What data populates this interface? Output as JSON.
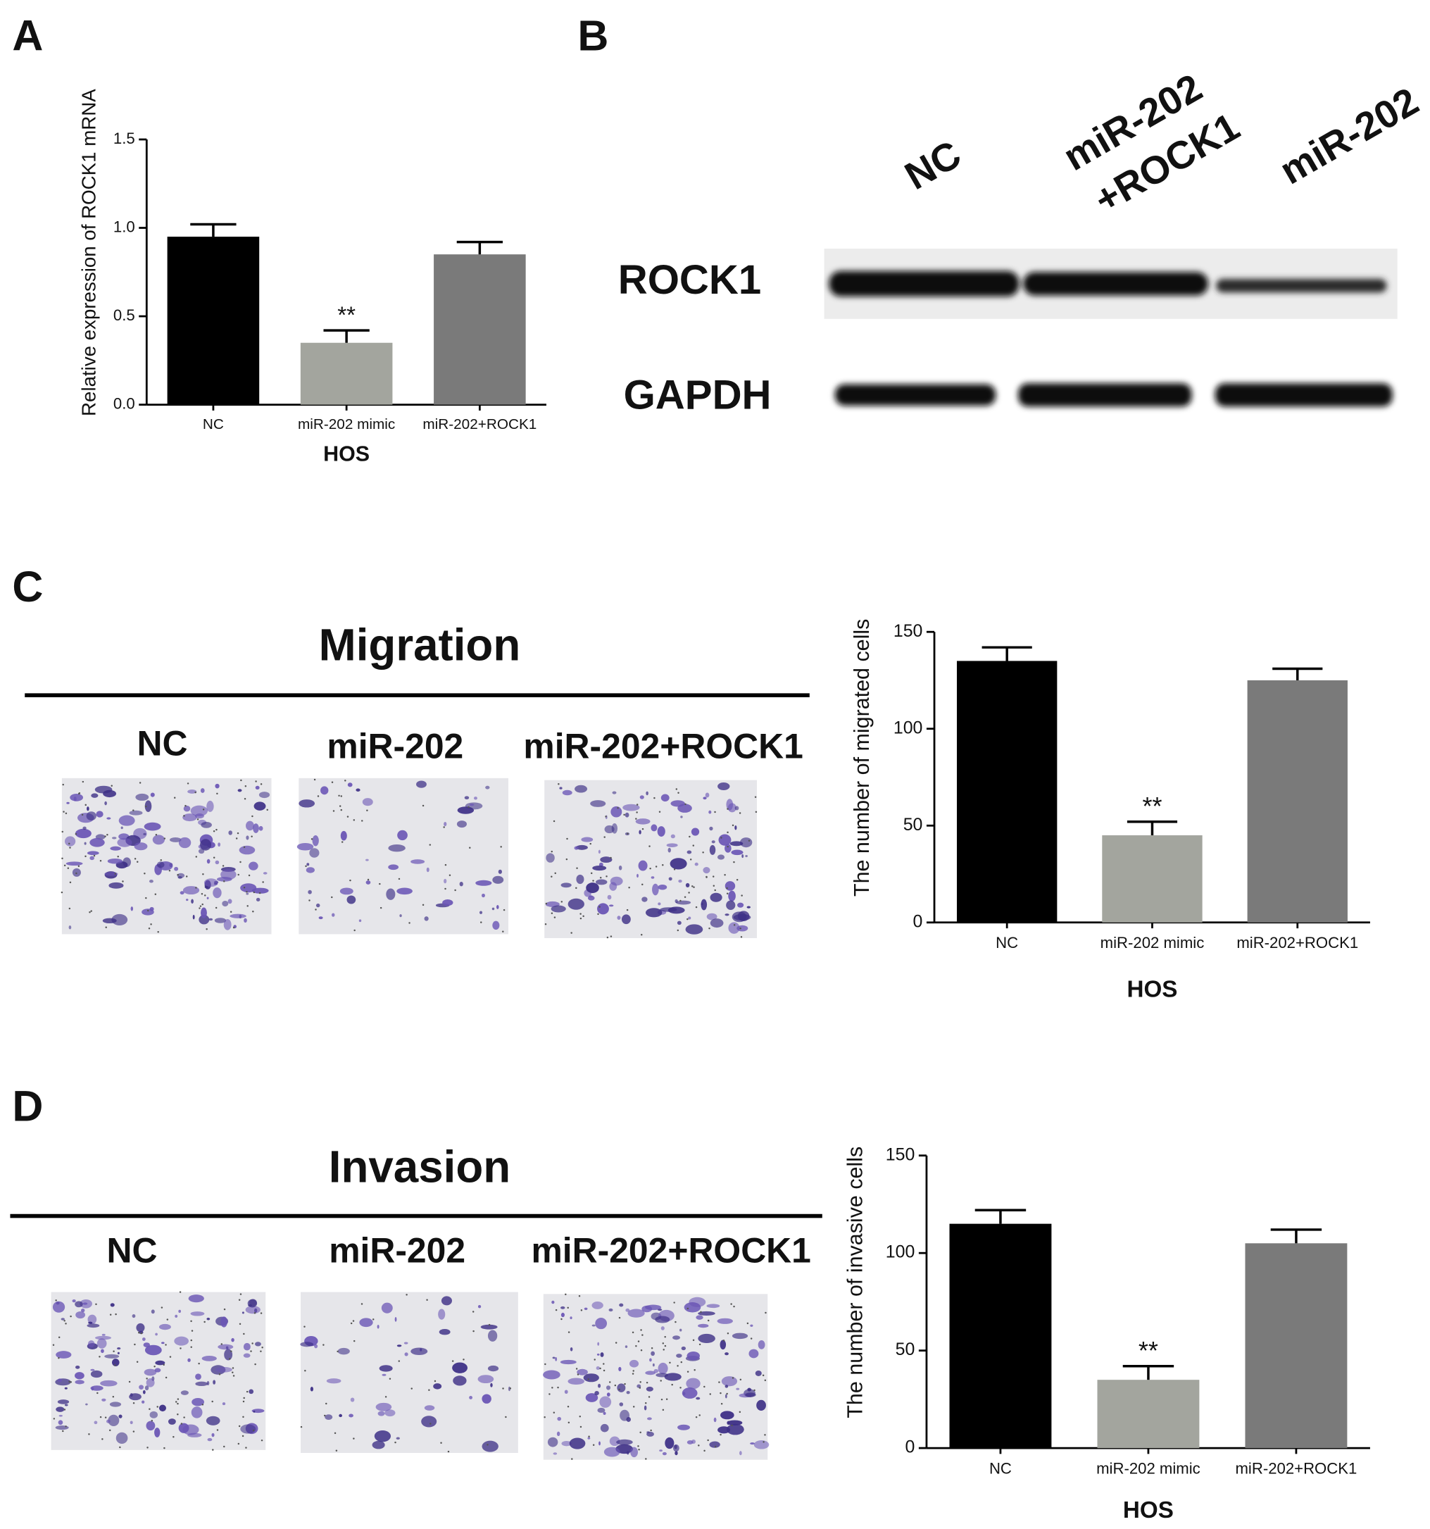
{
  "figure": {
    "panel_labels": [
      "A",
      "B",
      "C",
      "D"
    ],
    "blot": {
      "lanes": [
        [
          "NC"
        ],
        [
          "miR-202",
          "+ROCK1"
        ],
        [
          "miR-202"
        ]
      ],
      "proteins": [
        "ROCK1",
        "GAPDH"
      ]
    },
    "migration": {
      "title": "Migration",
      "groups": [
        "NC",
        "miR-202",
        "miR-202+ROCK1"
      ]
    },
    "invasion": {
      "title": "Invasion",
      "groups": [
        "NC",
        "miR-202",
        "miR-202+ROCK1"
      ]
    }
  },
  "chart_data": [
    {
      "type": "bar",
      "y_label": "Relative expression of ROCK1 mRNA",
      "x_label": "HOS",
      "categories": [
        "NC",
        "miR-202 mimic",
        "miR-202+ROCK1"
      ],
      "values": [
        0.95,
        0.35,
        0.85
      ],
      "errors": [
        0.07,
        0.07,
        0.07
      ],
      "value_annotations": [
        null,
        "**",
        null
      ],
      "colors": [
        "#000000",
        "#a3a59e",
        "#7a7a7a"
      ],
      "ylim": [
        0,
        1.5
      ],
      "yticks": [
        {
          "value": 0,
          "label": "0.0"
        },
        0.5,
        {
          "value": 1,
          "label": "1.0"
        },
        1.5
      ]
    },
    {
      "type": "bar",
      "y_label": "The number of migrated cells",
      "x_label": "HOS",
      "categories": [
        "NC",
        "miR-202 mimic",
        "miR-202+ROCK1"
      ],
      "values": [
        135,
        45,
        125
      ],
      "errors": [
        7,
        7,
        6
      ],
      "value_annotations": [
        null,
        "**",
        null
      ],
      "colors": [
        "#000000",
        "#a3a59e",
        "#7a7a7a"
      ],
      "ylim": [
        0,
        150
      ],
      "yticks": [
        0,
        50,
        100,
        150
      ]
    },
    {
      "type": "bar",
      "y_label": "The number of invasive cells",
      "x_label": "HOS",
      "categories": [
        "NC",
        "miR-202 mimic",
        "miR-202+ROCK1"
      ],
      "values": [
        115,
        35,
        105
      ],
      "errors": [
        7,
        7,
        7
      ],
      "value_annotations": [
        null,
        "**",
        null
      ],
      "colors": [
        "#000000",
        "#a3a59e",
        "#7a7a7a"
      ],
      "ylim": [
        0,
        150
      ],
      "yticks": [
        0,
        50,
        100,
        150
      ]
    }
  ]
}
